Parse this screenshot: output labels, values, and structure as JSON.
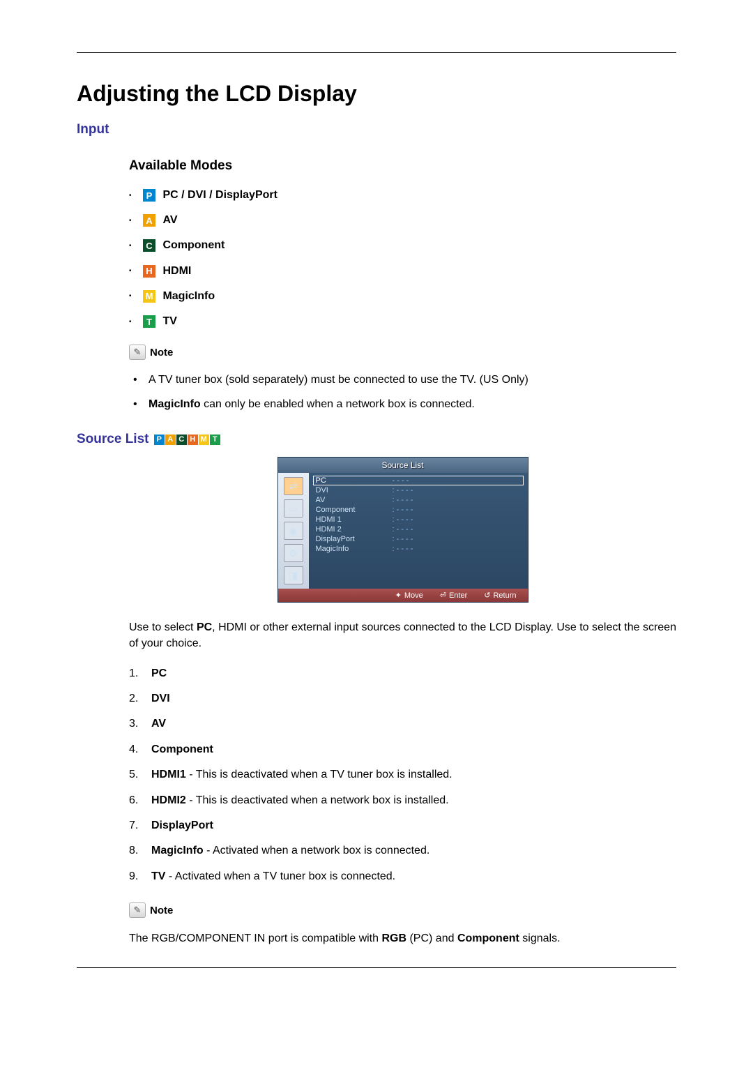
{
  "title": "Adjusting the LCD Display",
  "input_heading": "Input",
  "available_modes_heading": "Available Modes",
  "modes": {
    "p": {
      "letter": "P",
      "color": "#0085d1",
      "label": "PC / DVI / DisplayPort"
    },
    "a": {
      "letter": "A",
      "color": "#f0a000",
      "label": "AV"
    },
    "c": {
      "letter": "C",
      "color": "#0a4d28",
      "label": "Component"
    },
    "h": {
      "letter": "H",
      "color": "#e86820",
      "label": "HDMI"
    },
    "m": {
      "letter": "M",
      "color": "#f5c518",
      "label": "MagicInfo"
    },
    "t": {
      "letter": "T",
      "color": "#1a9e4a",
      "label": "TV"
    }
  },
  "note_label": "Note",
  "note_items": {
    "n1": {
      "text": "A TV tuner box (sold separately) must be connected to use the TV. (US Only)"
    },
    "n2_bold": "MagicInfo",
    "n2_rest": " can only be enabled when a network box is connected."
  },
  "source_list_heading": "Source List",
  "osd": {
    "title": "Source List",
    "rows": [
      {
        "src": "PC",
        "stat": "- - - -",
        "selected": true
      },
      {
        "src": "DVI",
        "stat": ": - - - -"
      },
      {
        "src": "AV",
        "stat": ": - - - -"
      },
      {
        "src": "Component",
        "stat": ": - - - -"
      },
      {
        "src": "HDMI 1",
        "stat": ": - - - -"
      },
      {
        "src": "HDMI 2",
        "stat": ": - - - -"
      },
      {
        "src": "DisplayPort",
        "stat": ": - - - -"
      },
      {
        "src": "MagicInfo",
        "stat": ": - - - -"
      }
    ],
    "foot": {
      "move": "Move",
      "enter": "Enter",
      "return": "Return"
    }
  },
  "source_desc_pre": "Use to select ",
  "source_desc_bold": "PC",
  "source_desc_post": ", HDMI or other external input sources connected to the LCD Display. Use to select the screen of your choice.",
  "srclist": {
    "i1": "PC",
    "i2": "DVI",
    "i3": "AV",
    "i4": "Component",
    "i5_b": "HDMI1",
    "i5_r": " - This is deactivated when a TV tuner box is installed.",
    "i6_b": "HDMI2",
    "i6_r": " - This is deactivated when a network box is installed.",
    "i7": "DisplayPort",
    "i8_b": "MagicInfo",
    "i8_r": " - Activated when a network box is connected.",
    "i9_b": "TV",
    "i9_r": " - Activated when a TV tuner box is connected."
  },
  "note2_pre": "The RGB/COMPONENT IN port is compatible with ",
  "note2_b1": "RGB",
  "note2_mid": " (PC) and ",
  "note2_b2": "Component",
  "note2_post": " signals."
}
